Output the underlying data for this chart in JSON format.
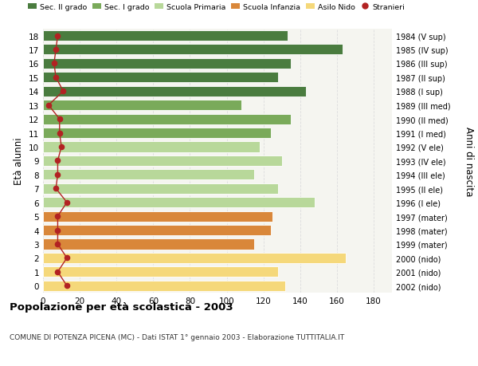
{
  "ages": [
    18,
    17,
    16,
    15,
    14,
    13,
    12,
    11,
    10,
    9,
    8,
    7,
    6,
    5,
    4,
    3,
    2,
    1,
    0
  ],
  "right_labels": [
    "1984 (V sup)",
    "1985 (IV sup)",
    "1986 (III sup)",
    "1987 (II sup)",
    "1988 (I sup)",
    "1989 (III med)",
    "1990 (II med)",
    "1991 (I med)",
    "1992 (V ele)",
    "1993 (IV ele)",
    "1994 (III ele)",
    "1995 (II ele)",
    "1996 (I ele)",
    "1997 (mater)",
    "1998 (mater)",
    "1999 (mater)",
    "2000 (nido)",
    "2001 (nido)",
    "2002 (nido)"
  ],
  "bar_values": [
    133,
    163,
    135,
    128,
    143,
    108,
    135,
    124,
    118,
    130,
    115,
    128,
    148,
    125,
    124,
    115,
    165,
    128,
    132
  ],
  "bar_colors": [
    "#4a7c3f",
    "#4a7c3f",
    "#4a7c3f",
    "#4a7c3f",
    "#4a7c3f",
    "#7aaa5a",
    "#7aaa5a",
    "#7aaa5a",
    "#b8d89a",
    "#b8d89a",
    "#b8d89a",
    "#b8d89a",
    "#b8d89a",
    "#d9873a",
    "#d9873a",
    "#d9873a",
    "#f5d87a",
    "#f5d87a",
    "#f5d87a"
  ],
  "stranieri_values": [
    8,
    7,
    6,
    7,
    11,
    3,
    9,
    9,
    10,
    8,
    8,
    7,
    13,
    8,
    8,
    8,
    13,
    8,
    13
  ],
  "stranieri_color": "#b22222",
  "ylabel_label": "Età alunni",
  "right_ylabel": "Anni di nascita",
  "xlim": [
    0,
    190
  ],
  "xticks": [
    0,
    20,
    40,
    60,
    80,
    100,
    120,
    140,
    160,
    180
  ],
  "title": "Popolazione per età scolastica - 2003",
  "subtitle": "COMUNE DI POTENZA PICENA (MC) - Dati ISTAT 1° gennaio 2003 - Elaborazione TUTTITALIA.IT",
  "legend_labels": [
    "Sec. II grado",
    "Sec. I grado",
    "Scuola Primaria",
    "Scuola Infanzia",
    "Asilo Nido",
    "Stranieri"
  ],
  "legend_colors": [
    "#4a7c3f",
    "#7aaa5a",
    "#b8d89a",
    "#d9873a",
    "#f5d87a",
    "#b22222"
  ],
  "bg_color": "#ffffff",
  "plot_bg_color": "#f5f5f0",
  "bar_height": 0.75,
  "grid_color": "#dddddd"
}
